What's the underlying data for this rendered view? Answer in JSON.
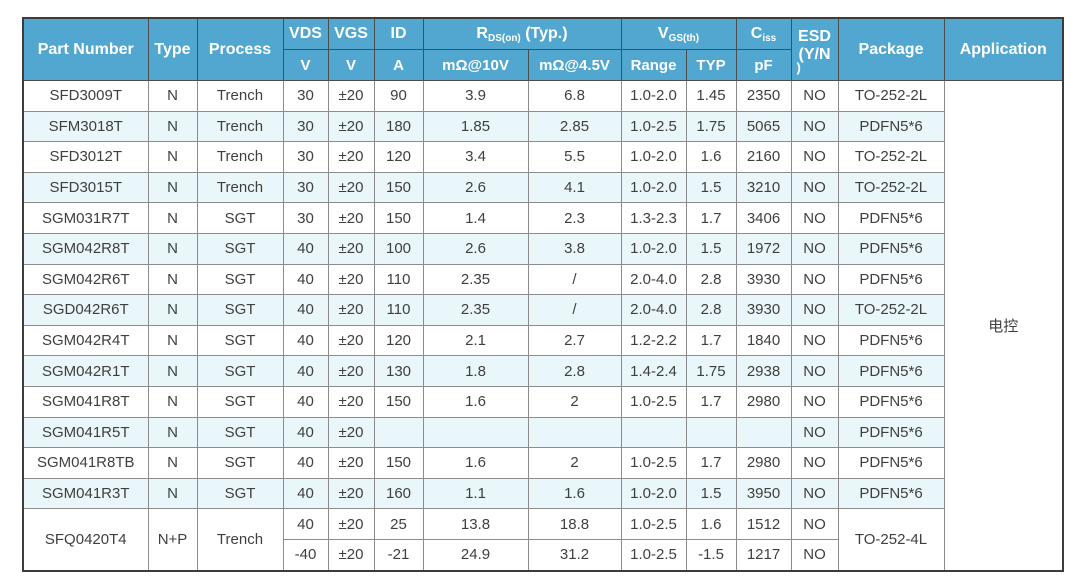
{
  "colors": {
    "header_bg": "#52a7d1",
    "header_text": "#ffffff",
    "row_alt_bg": "#e9f6fa",
    "row_bg": "#ffffff",
    "border_outer": "#3c3c3c",
    "border_inner": "#8c8c8c",
    "body_text": "#3f3f3f"
  },
  "header": {
    "part_number": "Part Number",
    "type": "Type",
    "process": "Process",
    "vds": "VDS",
    "vds_unit": "V",
    "vgs": "VGS",
    "vgs_unit": "V",
    "id": "ID",
    "id_unit": "A",
    "rds_main": "R",
    "rds_sub": "DS(on)",
    "rds_rest": " (Typ.)",
    "rds_10v": "mΩ@10V",
    "rds_45v": "mΩ@4.5V",
    "vgsth_main": "V",
    "vgsth_sub": "GS(th)",
    "range": "Range",
    "typ": "TYP",
    "ciss_main": "C",
    "ciss_sub": "iss",
    "ciss_unit": "pF",
    "esd_line1": "ESD",
    "esd_line2": "(Y/N",
    "esd_line3": ")",
    "package": "Package",
    "application": "Application"
  },
  "table": {
    "column_order": [
      "part",
      "type",
      "process",
      "vds",
      "vgs",
      "id",
      "rds10",
      "rds45",
      "range",
      "typ",
      "ciss",
      "esd",
      "pkg",
      "app"
    ],
    "rows": [
      {
        "_alt": false,
        "_spans": {
          "app": 16
        },
        "part": "SFD3009T",
        "type": "N",
        "process": "Trench",
        "vds": "30",
        "vgs": "±20",
        "id": "90",
        "rds10": "3.9",
        "rds45": "6.8",
        "range": "1.0-2.0",
        "typ": "1.45",
        "ciss": "2350",
        "esd": "NO",
        "pkg": "TO-252-2L",
        "app": "电控"
      },
      {
        "_alt": true,
        "part": "SFM3018T",
        "type": "N",
        "process": "Trench",
        "vds": "30",
        "vgs": "±20",
        "id": "180",
        "rds10": "1.85",
        "rds45": "2.85",
        "range": "1.0-2.5",
        "typ": "1.75",
        "ciss": "5065",
        "esd": "NO",
        "pkg": "PDFN5*6"
      },
      {
        "_alt": false,
        "part": "SFD3012T",
        "type": "N",
        "process": "Trench",
        "vds": "30",
        "vgs": "±20",
        "id": "120",
        "rds10": "3.4",
        "rds45": "5.5",
        "range": "1.0-2.0",
        "typ": "1.6",
        "ciss": "2160",
        "esd": "NO",
        "pkg": "TO-252-2L"
      },
      {
        "_alt": true,
        "part": "SFD3015T",
        "type": "N",
        "process": "Trench",
        "vds": "30",
        "vgs": "±20",
        "id": "150",
        "rds10": "2.6",
        "rds45": "4.1",
        "range": "1.0-2.0",
        "typ": "1.5",
        "ciss": "3210",
        "esd": "NO",
        "pkg": "TO-252-2L"
      },
      {
        "_alt": false,
        "part": "SGM031R7T",
        "type": "N",
        "process": "SGT",
        "vds": "30",
        "vgs": "±20",
        "id": "150",
        "rds10": "1.4",
        "rds45": "2.3",
        "range": "1.3-2.3",
        "typ": "1.7",
        "ciss": "3406",
        "esd": "NO",
        "pkg": "PDFN5*6"
      },
      {
        "_alt": true,
        "part": "SGM042R8T",
        "type": "N",
        "process": "SGT",
        "vds": "40",
        "vgs": "±20",
        "id": "100",
        "rds10": "2.6",
        "rds45": "3.8",
        "range": "1.0-2.0",
        "typ": "1.5",
        "ciss": "1972",
        "esd": "NO",
        "pkg": "PDFN5*6"
      },
      {
        "_alt": false,
        "part": "SGM042R6T",
        "type": "N",
        "process": "SGT",
        "vds": "40",
        "vgs": "±20",
        "id": "110",
        "rds10": "2.35",
        "rds45": "/",
        "range": "2.0-4.0",
        "typ": "2.8",
        "ciss": "3930",
        "esd": "NO",
        "pkg": "PDFN5*6"
      },
      {
        "_alt": true,
        "part": "SGD042R6T",
        "type": "N",
        "process": "SGT",
        "vds": "40",
        "vgs": "±20",
        "id": "110",
        "rds10": "2.35",
        "rds45": "/",
        "range": "2.0-4.0",
        "typ": "2.8",
        "ciss": "3930",
        "esd": "NO",
        "pkg": "TO-252-2L"
      },
      {
        "_alt": false,
        "part": "SGM042R4T",
        "type": "N",
        "process": "SGT",
        "vds": "40",
        "vgs": "±20",
        "id": "120",
        "rds10": "2.1",
        "rds45": "2.7",
        "range": "1.2-2.2",
        "typ": "1.7",
        "ciss": "1840",
        "esd": "NO",
        "pkg": "PDFN5*6"
      },
      {
        "_alt": true,
        "part": "SGM042R1T",
        "type": "N",
        "process": "SGT",
        "vds": "40",
        "vgs": "±20",
        "id": "130",
        "rds10": "1.8",
        "rds45": "2.8",
        "range": "1.4-2.4",
        "typ": "1.75",
        "ciss": "2938",
        "esd": "NO",
        "pkg": "PDFN5*6"
      },
      {
        "_alt": false,
        "part": "SGM041R8T",
        "type": "N",
        "process": "SGT",
        "vds": "40",
        "vgs": "±20",
        "id": "150",
        "rds10": "1.6",
        "rds45": "2",
        "range": "1.0-2.5",
        "typ": "1.7",
        "ciss": "2980",
        "esd": "NO",
        "pkg": "PDFN5*6"
      },
      {
        "_alt": true,
        "part": "SGM041R5T",
        "type": "N",
        "process": "SGT",
        "vds": "40",
        "vgs": "±20",
        "id": "",
        "rds10": "",
        "rds45": "",
        "range": "",
        "typ": "",
        "ciss": "",
        "esd": "NO",
        "pkg": "PDFN5*6"
      },
      {
        "_alt": false,
        "part": "SGM041R8TB",
        "type": "N",
        "process": "SGT",
        "vds": "40",
        "vgs": "±20",
        "id": "150",
        "rds10": "1.6",
        "rds45": "2",
        "range": "1.0-2.5",
        "typ": "1.7",
        "ciss": "2980",
        "esd": "NO",
        "pkg": "PDFN5*6"
      },
      {
        "_alt": true,
        "part": "SGM041R3T",
        "type": "N",
        "process": "SGT",
        "vds": "40",
        "vgs": "±20",
        "id": "160",
        "rds10": "1.1",
        "rds45": "1.6",
        "range": "1.0-2.0",
        "typ": "1.5",
        "ciss": "3950",
        "esd": "NO",
        "pkg": "PDFN5*6"
      },
      {
        "_alt": false,
        "_spans": {
          "part": 2,
          "type": 2,
          "process": 2,
          "pkg": 2
        },
        "part": "SFQ0420T4",
        "type": "N+P",
        "process": "Trench",
        "vds": "40",
        "vgs": "±20",
        "id": "25",
        "rds10": "13.8",
        "rds45": "18.8",
        "range": "1.0-2.5",
        "typ": "1.6",
        "ciss": "1512",
        "esd": "NO",
        "pkg": "TO-252-4L"
      },
      {
        "_alt": false,
        "vds": "-40",
        "vgs": "±20",
        "id": "-21",
        "rds10": "24.9",
        "rds45": "31.2",
        "range": "1.0-2.5",
        "typ": "-1.5",
        "ciss": "1217",
        "esd": "NO"
      }
    ]
  }
}
